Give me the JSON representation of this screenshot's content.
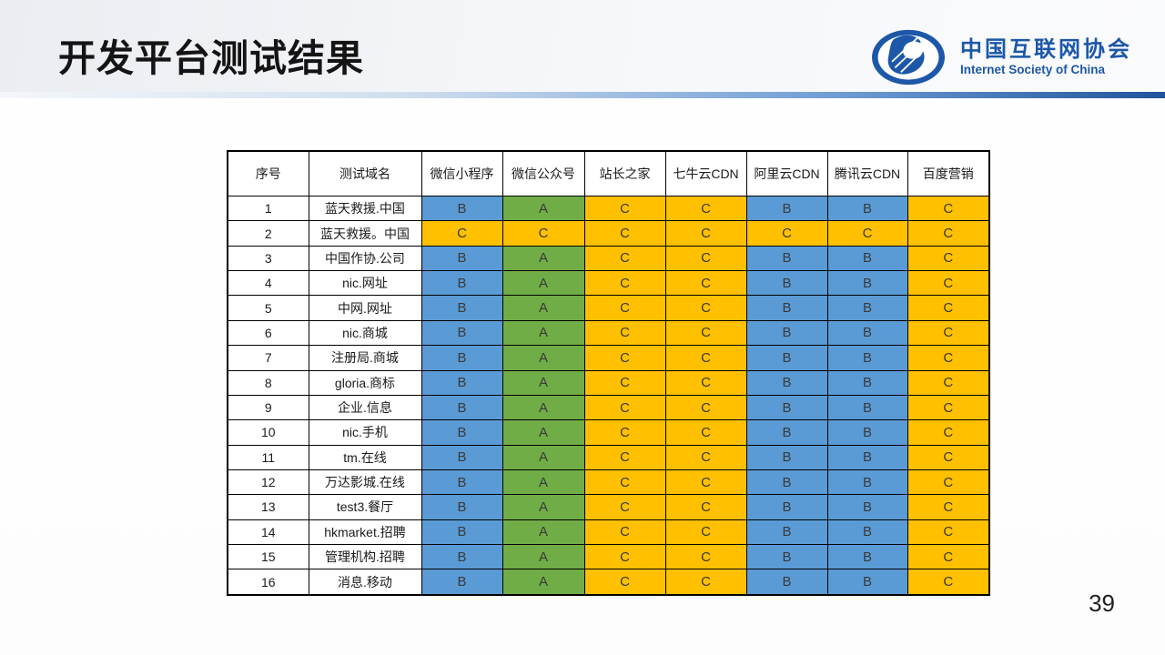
{
  "slide": {
    "title": "开发平台测试结果",
    "page_number": "39"
  },
  "logo": {
    "name_zh": "中国互联网协会",
    "name_en": "Internet Society of China",
    "color": "#1c57a8"
  },
  "grade_colors": {
    "A": "#70AD47",
    "B": "#5B9BD5",
    "C": "#FFC000"
  },
  "table": {
    "columns": [
      "序号",
      "测试域名",
      "微信小程序",
      "微信公众号",
      "站长之家",
      "七牛云CDN",
      "阿里云CDN",
      "腾讯云CDN",
      "百度营销"
    ],
    "rows": [
      {
        "no": "1",
        "domain": "蓝天救援.中国",
        "grades": [
          "B",
          "A",
          "C",
          "C",
          "B",
          "B",
          "C"
        ]
      },
      {
        "no": "2",
        "domain": "蓝天救援。中国",
        "grades": [
          "C",
          "C",
          "C",
          "C",
          "C",
          "C",
          "C"
        ]
      },
      {
        "no": "3",
        "domain": "中国作协.公司",
        "grades": [
          "B",
          "A",
          "C",
          "C",
          "B",
          "B",
          "C"
        ]
      },
      {
        "no": "4",
        "domain": "nic.网址",
        "grades": [
          "B",
          "A",
          "C",
          "C",
          "B",
          "B",
          "C"
        ]
      },
      {
        "no": "5",
        "domain": "中网.网址",
        "grades": [
          "B",
          "A",
          "C",
          "C",
          "B",
          "B",
          "C"
        ]
      },
      {
        "no": "6",
        "domain": "nic.商城",
        "grades": [
          "B",
          "A",
          "C",
          "C",
          "B",
          "B",
          "C"
        ]
      },
      {
        "no": "7",
        "domain": "注册局.商城",
        "grades": [
          "B",
          "A",
          "C",
          "C",
          "B",
          "B",
          "C"
        ]
      },
      {
        "no": "8",
        "domain": "gloria.商标",
        "grades": [
          "B",
          "A",
          "C",
          "C",
          "B",
          "B",
          "C"
        ]
      },
      {
        "no": "9",
        "domain": "企业.信息",
        "grades": [
          "B",
          "A",
          "C",
          "C",
          "B",
          "B",
          "C"
        ]
      },
      {
        "no": "10",
        "domain": "nic.手机",
        "grades": [
          "B",
          "A",
          "C",
          "C",
          "B",
          "B",
          "C"
        ]
      },
      {
        "no": "11",
        "domain": "tm.在线",
        "grades": [
          "B",
          "A",
          "C",
          "C",
          "B",
          "B",
          "C"
        ]
      },
      {
        "no": "12",
        "domain": "万达影城.在线",
        "grades": [
          "B",
          "A",
          "C",
          "C",
          "B",
          "B",
          "C"
        ]
      },
      {
        "no": "13",
        "domain": "test3.餐厅",
        "grades": [
          "B",
          "A",
          "C",
          "C",
          "B",
          "B",
          "C"
        ]
      },
      {
        "no": "14",
        "domain": "hkmarket.招聘",
        "grades": [
          "B",
          "A",
          "C",
          "C",
          "B",
          "B",
          "C"
        ]
      },
      {
        "no": "15",
        "domain": "管理机构.招聘",
        "grades": [
          "B",
          "A",
          "C",
          "C",
          "B",
          "B",
          "C"
        ]
      },
      {
        "no": "16",
        "domain": "消息.移动",
        "grades": [
          "B",
          "A",
          "C",
          "C",
          "B",
          "B",
          "C"
        ]
      }
    ]
  }
}
